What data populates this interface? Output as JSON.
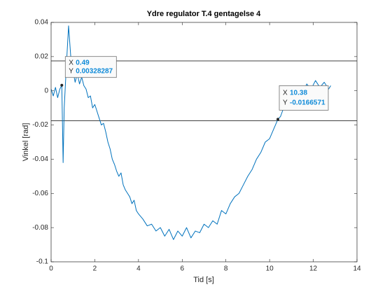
{
  "chart_data": {
    "type": "line",
    "title": "Ydre regulator T.4 gentagelse 4",
    "x_label": "Tid [s]",
    "y_label": "Vinkel [rad]",
    "xlim": [
      0,
      14
    ],
    "ylim": [
      -0.1,
      0.04
    ],
    "xticks": [
      0,
      2,
      4,
      6,
      8,
      10,
      12,
      14
    ],
    "yticks": [
      -0.1,
      -0.08,
      -0.06,
      -0.04,
      -0.02,
      0,
      0.02,
      0.04
    ],
    "x": [
      0,
      0.1,
      0.2,
      0.3,
      0.4,
      0.49,
      0.55,
      0.6,
      0.7,
      0.8,
      0.9,
      1.0,
      1.1,
      1.2,
      1.3,
      1.4,
      1.5,
      1.6,
      1.7,
      1.8,
      1.9,
      2.0,
      2.1,
      2.2,
      2.3,
      2.4,
      2.5,
      2.6,
      2.7,
      2.8,
      2.9,
      3.0,
      3.1,
      3.2,
      3.3,
      3.4,
      3.5,
      3.6,
      3.7,
      3.8,
      3.9,
      4.0,
      4.2,
      4.4,
      4.6,
      4.8,
      5.0,
      5.2,
      5.4,
      5.6,
      5.8,
      6.0,
      6.2,
      6.4,
      6.6,
      6.8,
      7.0,
      7.2,
      7.4,
      7.6,
      7.8,
      8.0,
      8.2,
      8.4,
      8.6,
      8.8,
      9.0,
      9.2,
      9.4,
      9.6,
      9.8,
      10.0,
      10.2,
      10.38,
      10.5,
      10.7,
      10.9,
      11.1,
      11.3,
      11.5,
      11.7,
      11.9,
      12.1,
      12.3,
      12.5,
      12.7,
      12.8
    ],
    "series": [
      {
        "color": "#0072bd",
        "values": [
          0.001,
          -0.003,
          0.002,
          -0.004,
          0.001,
          0.00328287,
          -0.042,
          -0.01,
          0.015,
          0.038,
          0.02,
          0.012,
          0.005,
          0.01,
          0.004,
          0.008,
          0.003,
          0.001,
          -0.004,
          -0.003,
          -0.01,
          -0.008,
          -0.012,
          -0.016,
          -0.02,
          -0.019,
          -0.024,
          -0.03,
          -0.034,
          -0.04,
          -0.043,
          -0.047,
          -0.05,
          -0.048,
          -0.055,
          -0.058,
          -0.06,
          -0.062,
          -0.066,
          -0.064,
          -0.07,
          -0.072,
          -0.075,
          -0.079,
          -0.078,
          -0.082,
          -0.08,
          -0.085,
          -0.081,
          -0.087,
          -0.082,
          -0.085,
          -0.08,
          -0.086,
          -0.082,
          -0.083,
          -0.078,
          -0.08,
          -0.076,
          -0.078,
          -0.07,
          -0.072,
          -0.066,
          -0.062,
          -0.06,
          -0.055,
          -0.05,
          -0.046,
          -0.04,
          -0.036,
          -0.03,
          -0.028,
          -0.022,
          -0.0166571,
          -0.015,
          -0.008,
          -0.004,
          -0.001,
          0.002,
          -0.002,
          0.004,
          0.001,
          0.006,
          0.002,
          0.005,
          0.001,
          0.003
        ]
      }
    ],
    "hlines": [
      0.0175,
      -0.0175
    ],
    "hline_color": "#000000",
    "datatip_keys": [
      "X",
      "Y"
    ],
    "datatips": [
      {
        "x": 0.49,
        "y": 0.00328287
      },
      {
        "x": 10.38,
        "y": -0.0166571
      }
    ]
  }
}
